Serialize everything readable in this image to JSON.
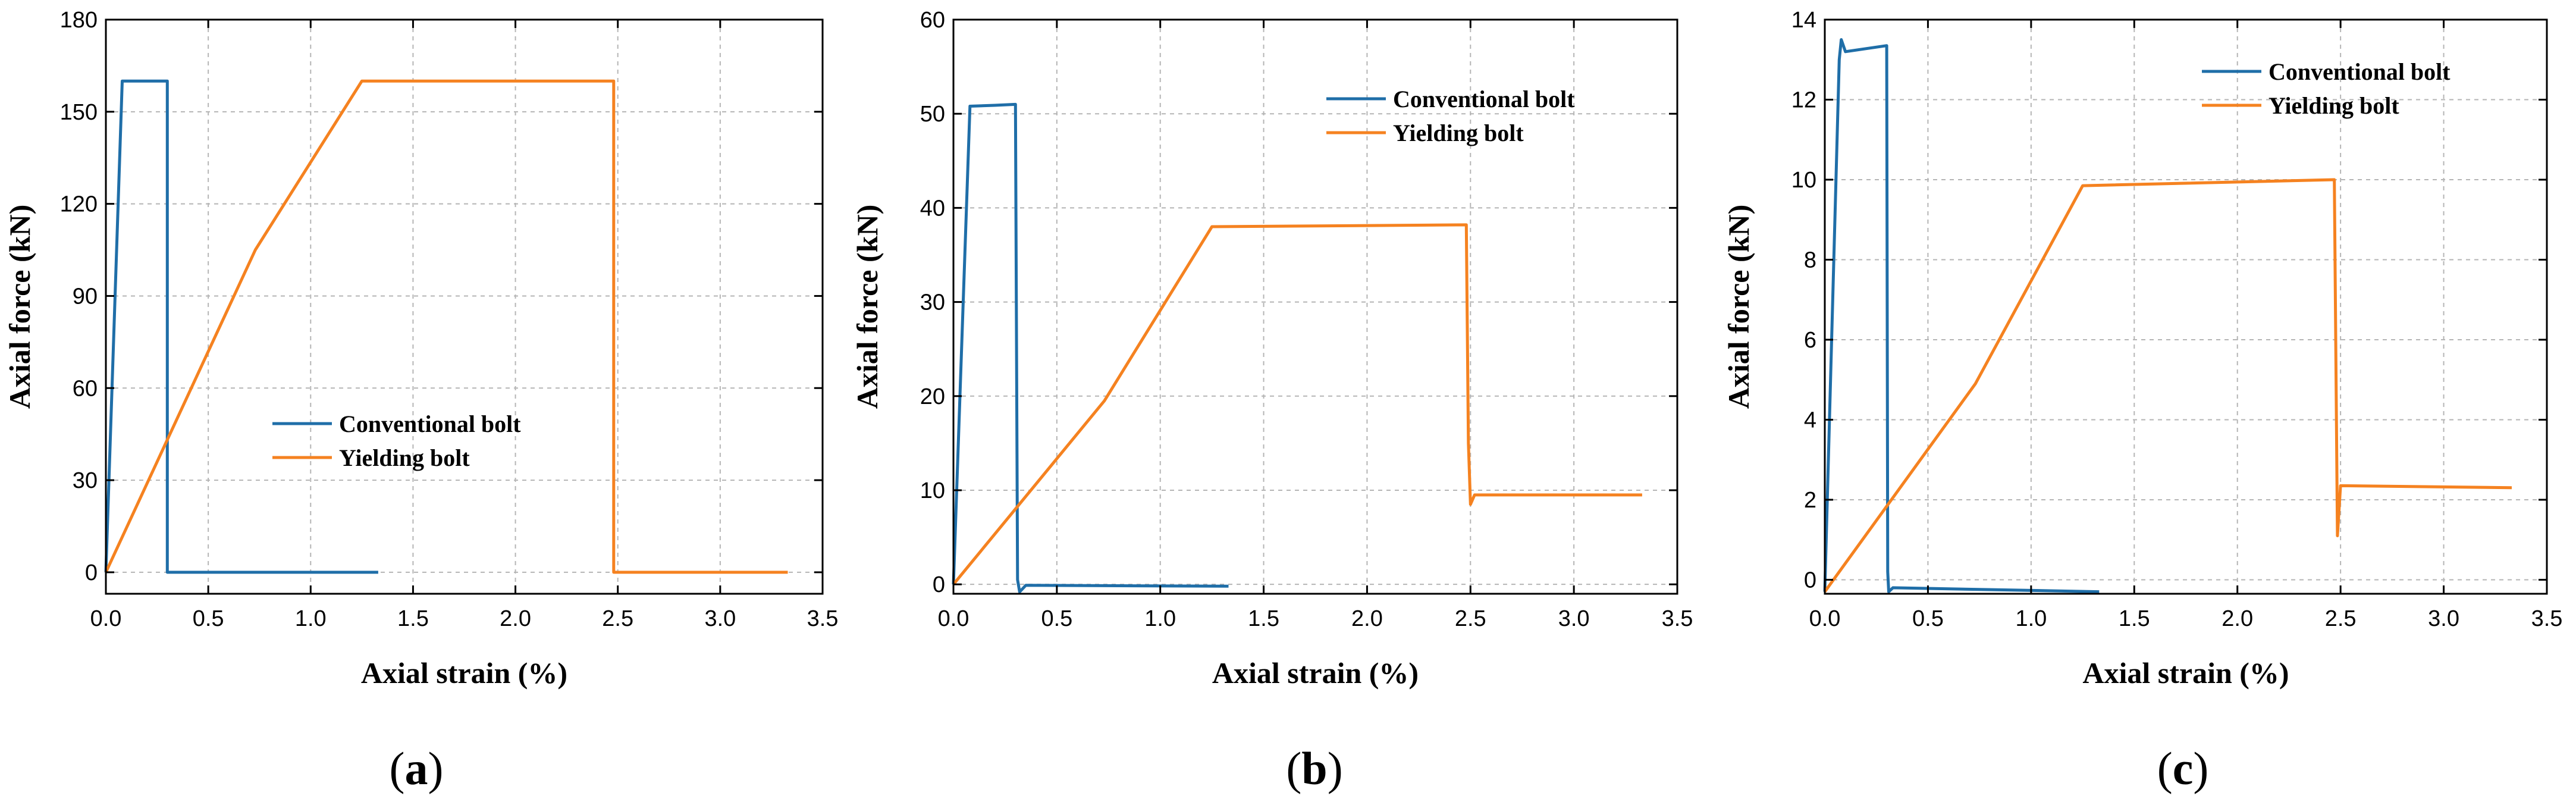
{
  "colors": {
    "conventional": "#1f6ea8",
    "yielding": "#f58220"
  },
  "chart_data": [
    {
      "type": "line",
      "panel": "a",
      "caption": {
        "open": "(",
        "letter": "a",
        "close": ")"
      },
      "xlabel": "Axial strain (%)",
      "ylabel": "Axial force (kN)",
      "xlim": [
        0,
        3.5
      ],
      "ylim": [
        -7,
        180
      ],
      "xticks": [
        0.0,
        0.5,
        1.0,
        1.5,
        2.0,
        2.5,
        3.0,
        3.5
      ],
      "xtick_labels": [
        "0.0",
        "0.5",
        "1.0",
        "1.5",
        "2.0",
        "2.5",
        "3.0",
        "3.5"
      ],
      "yticks": [
        0,
        30,
        60,
        90,
        120,
        150,
        180
      ],
      "ytick_labels": [
        "0",
        "30",
        "60",
        "90",
        "120",
        "150",
        "180"
      ],
      "grid": true,
      "legend": {
        "position": "center",
        "entries": [
          "Conventional bolt",
          "Yielding bolt"
        ]
      },
      "series": [
        {
          "name": "Conventional bolt",
          "color_key": "conventional",
          "x": [
            0,
            0.08,
            0.3,
            0.3,
            1.33
          ],
          "y": [
            0,
            160,
            160,
            0,
            0
          ]
        },
        {
          "name": "Yielding bolt",
          "color_key": "yielding",
          "x": [
            0,
            0.73,
            1.25,
            2.48,
            2.48,
            3.33
          ],
          "y": [
            0,
            105,
            160,
            160,
            0,
            0
          ]
        }
      ]
    },
    {
      "type": "line",
      "panel": "b",
      "caption": {
        "open": "(",
        "letter": "b",
        "close": ")"
      },
      "xlabel": "Axial strain (%)",
      "ylabel": "Axial force (kN)",
      "xlim": [
        0,
        3.5
      ],
      "ylim": [
        -1,
        60
      ],
      "xticks": [
        0.0,
        0.5,
        1.0,
        1.5,
        2.0,
        2.5,
        3.0,
        3.5
      ],
      "xtick_labels": [
        "0.0",
        "0.5",
        "1.0",
        "1.5",
        "2.0",
        "2.5",
        "3.0",
        "3.5"
      ],
      "yticks": [
        0,
        10,
        20,
        30,
        40,
        50,
        60
      ],
      "ytick_labels": [
        "0",
        "10",
        "20",
        "30",
        "40",
        "50",
        "60"
      ],
      "grid": true,
      "legend": {
        "position": "top-right",
        "entries": [
          "Conventional bolt",
          "Yielding bolt"
        ]
      },
      "series": [
        {
          "name": "Conventional bolt",
          "color_key": "conventional",
          "x": [
            0,
            0.08,
            0.2,
            0.3,
            0.31,
            0.32,
            0.35,
            1.33
          ],
          "y": [
            0,
            50.8,
            50.9,
            51,
            0.5,
            -0.8,
            -0.1,
            -0.2
          ]
        },
        {
          "name": "Yielding bolt",
          "color_key": "yielding",
          "x": [
            0,
            0.73,
            1.25,
            2.48,
            2.49,
            2.5,
            2.52,
            3.33
          ],
          "y": [
            0,
            19.5,
            38,
            38.2,
            15,
            8.5,
            9.5,
            9.5
          ]
        }
      ]
    },
    {
      "type": "line",
      "panel": "c",
      "caption": {
        "open": "(",
        "letter": "c",
        "close": ")"
      },
      "xlabel": "Axial strain (%)",
      "ylabel": "Axial force (kN)",
      "xlim": [
        0,
        3.5
      ],
      "ylim": [
        -0.35,
        14
      ],
      "xticks": [
        0.0,
        0.5,
        1.0,
        1.5,
        2.0,
        2.5,
        3.0,
        3.5
      ],
      "xtick_labels": [
        "0.0",
        "0.5",
        "1.0",
        "1.5",
        "2.0",
        "2.5",
        "3.0",
        "3.5"
      ],
      "yticks": [
        0,
        2,
        4,
        6,
        8,
        10,
        12,
        14
      ],
      "ytick_labels": [
        "0",
        "2",
        "4",
        "6",
        "8",
        "10",
        "12",
        "14"
      ],
      "grid": true,
      "legend": {
        "position": "top-right",
        "entries": [
          "Conventional bolt",
          "Yielding bolt"
        ]
      },
      "series": [
        {
          "name": "Conventional bolt",
          "color_key": "conventional",
          "x": [
            0,
            0.07,
            0.08,
            0.1,
            0.3,
            0.305,
            0.31,
            0.33,
            1.33
          ],
          "y": [
            -0.3,
            13,
            13.5,
            13.2,
            13.35,
            0.2,
            -0.3,
            -0.2,
            -0.3
          ]
        },
        {
          "name": "Yielding bolt",
          "color_key": "yielding",
          "x": [
            0,
            0.73,
            1.25,
            2.47,
            2.48,
            2.485,
            2.5,
            3.33
          ],
          "y": [
            -0.3,
            4.9,
            9.85,
            10,
            4,
            1.1,
            2.35,
            2.3
          ]
        }
      ]
    }
  ]
}
